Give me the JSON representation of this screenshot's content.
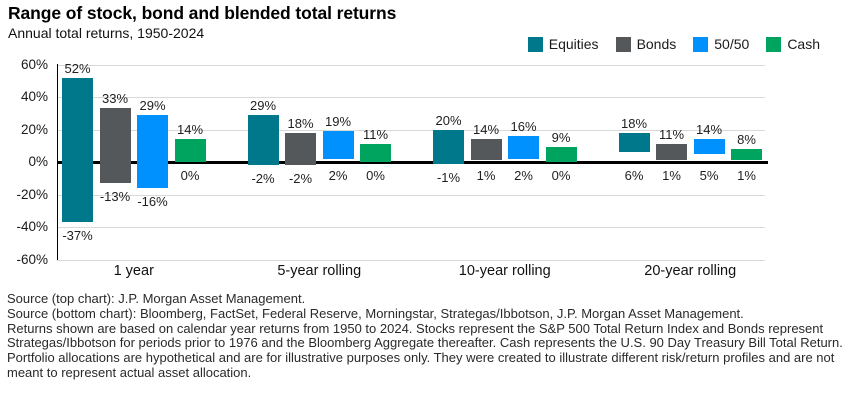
{
  "chart_data": {
    "type": "bar",
    "subtype": "floating-range-columns",
    "title": "Range of stock, bond and blended total returns",
    "subtitle": "Annual total returns, 1950-2024",
    "categories": [
      "1 year",
      "5-year rolling",
      "10-year rolling",
      "20-year rolling"
    ],
    "series": [
      {
        "name": "Equities",
        "color": "#00788c",
        "max": [
          52,
          29,
          20,
          18
        ],
        "min": [
          -37,
          -2,
          -1,
          6
        ]
      },
      {
        "name": "Bonds",
        "color": "#54585a",
        "max": [
          33,
          18,
          14,
          11
        ],
        "min": [
          -13,
          -2,
          1,
          1
        ]
      },
      {
        "name": "50/50",
        "color": "#0091ff",
        "max": [
          29,
          19,
          16,
          14
        ],
        "min": [
          -16,
          2,
          2,
          5
        ]
      },
      {
        "name": "Cash",
        "color": "#00a45f",
        "max": [
          14,
          11,
          9,
          8
        ],
        "min": [
          0,
          0,
          0,
          1
        ]
      }
    ],
    "value_label_format": "{v}%",
    "ylim": [
      -60,
      60
    ],
    "ytick_values": [
      60,
      40,
      20,
      0,
      -20,
      -40,
      -60
    ],
    "ytick_labels": [
      "60%",
      "40%",
      "20%",
      "0%",
      "-20%",
      "-40%",
      "-60%"
    ],
    "grid": true,
    "zero_line": true,
    "legend_position": "top-right"
  },
  "colors": {
    "gridline": "#d9d9d9",
    "axis": "#000000",
    "background": "#ffffff"
  },
  "footnotes": [
    "Source (top chart): J.P. Morgan Asset Management.",
    "Source (bottom chart): Bloomberg, FactSet, Federal Reserve, Morningstar, Strategas/Ibbotson, J.P. Morgan Asset Management.",
    "Returns shown are based on calendar year returns from 1950 to 2024. Stocks represent the S&P 500 Total Return Index and Bonds represent Strategas/Ibbotson for periods prior to 1976 and the Bloomberg Aggregate thereafter. Cash represents the U.S. 90 Day Treasury Bill Total Return.",
    "Portfolio allocations are hypothetical and are for illustrative purposes only. They were created to illustrate different risk/return profiles and are not meant to represent actual asset allocation."
  ]
}
